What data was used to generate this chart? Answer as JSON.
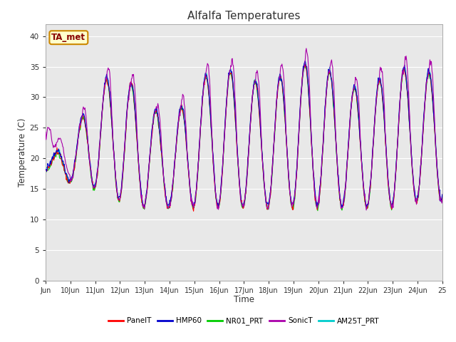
{
  "title": "Alfalfa Temperatures",
  "ylabel": "Temperature (C)",
  "xlabel": "Time",
  "annotation": "TA_met",
  "ylim": [
    0,
    42
  ],
  "yticks": [
    0,
    5,
    10,
    15,
    20,
    25,
    30,
    35,
    40
  ],
  "x_tick_labels": [
    "Jun",
    "10Jun",
    "11Jun",
    "12Jun",
    "13Jun",
    "14Jun",
    "15Jun",
    "16Jun",
    "17Jun",
    "18Jun",
    "19Jun",
    "20Jun",
    "21Jun",
    "22Jun",
    "23Jun",
    "24Jun",
    "25"
  ],
  "series": {
    "PanelT": {
      "color": "#ff0000",
      "lw": 0.8,
      "zorder": 3
    },
    "HMP60": {
      "color": "#0000cc",
      "lw": 0.8,
      "zorder": 4
    },
    "NR01_PRT": {
      "color": "#00cc00",
      "lw": 0.8,
      "zorder": 2
    },
    "SonicT": {
      "color": "#aa00aa",
      "lw": 0.8,
      "zorder": 5
    },
    "AM25T_PRT": {
      "color": "#00cccc",
      "lw": 0.8,
      "zorder": 1
    }
  },
  "bg_color": "#e8e8e8",
  "fig_bg": "#ffffff",
  "annotation_bg": "#ffffcc",
  "annotation_border": "#cc8800",
  "annotation_text_color": "#880000",
  "grid_color": "#ffffff",
  "spine_color": "#aaaaaa"
}
